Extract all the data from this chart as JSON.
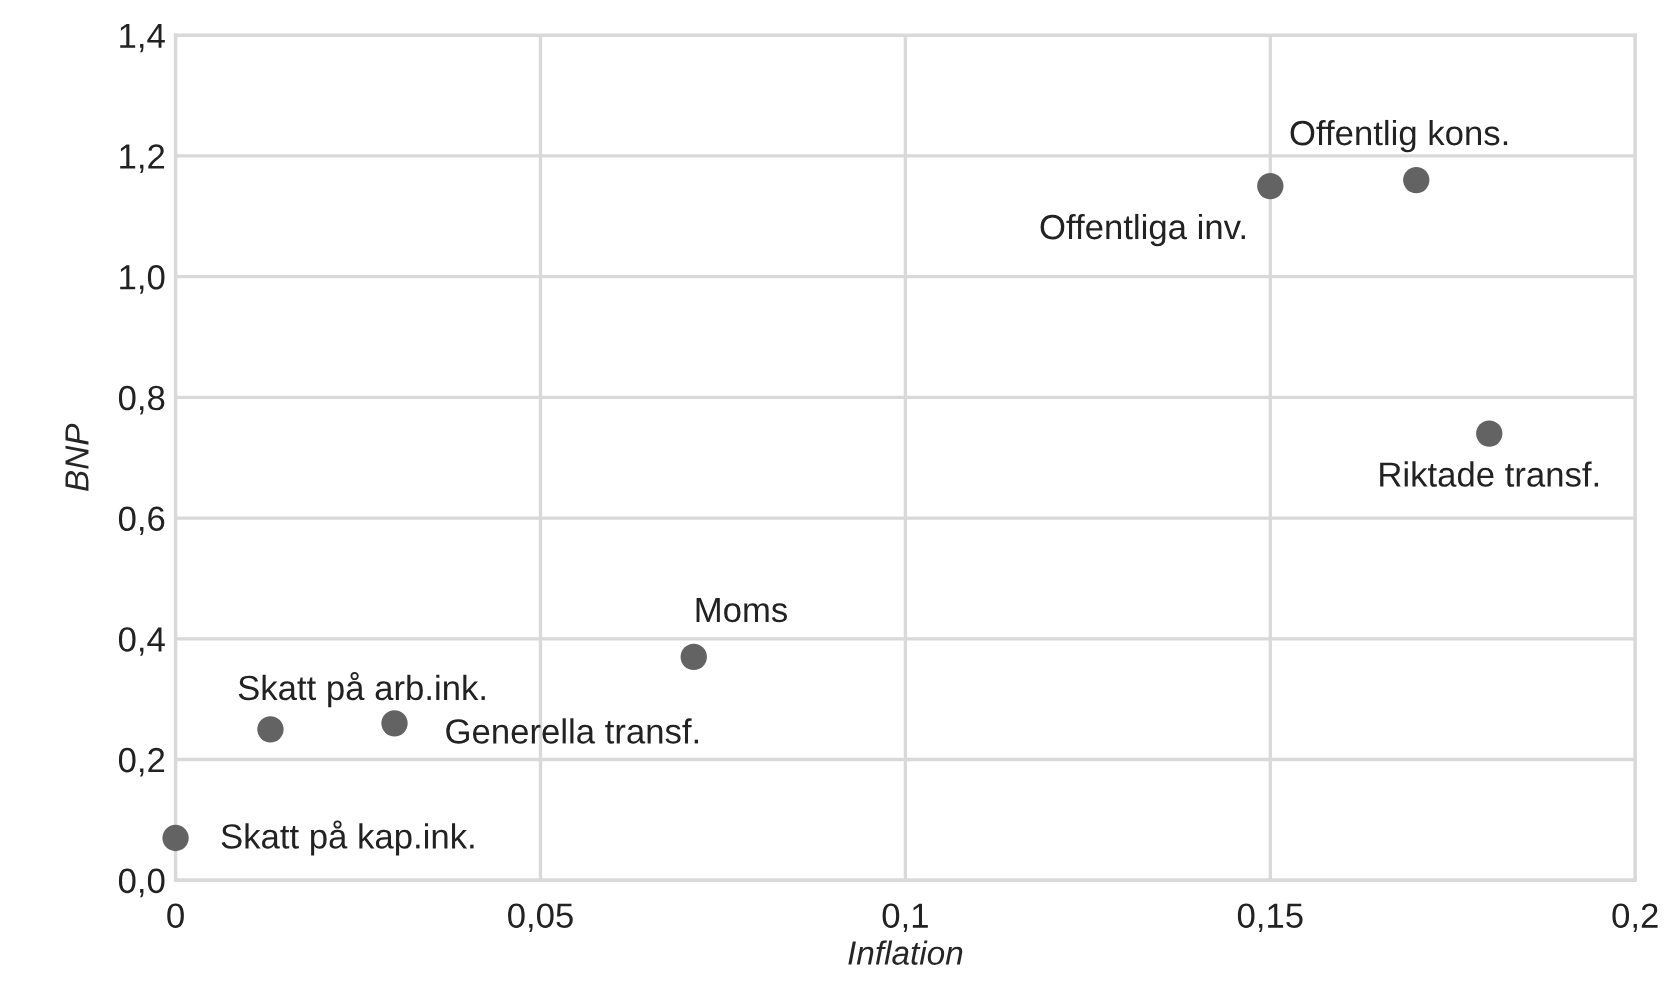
{
  "chart_data": {
    "type": "scatter",
    "xlabel": "Inflation",
    "ylabel": "BNP",
    "series": [
      {
        "color": "#636363",
        "x": [
          0,
          0.013,
          0.03,
          0.071,
          0.15,
          0.17,
          0.18
        ],
        "values": [
          0.07,
          0.25,
          0.26,
          0.37,
          1.15,
          1.16,
          0.74
        ]
      }
    ],
    "xlim": [
      0,
      0.2
    ],
    "xticks": [
      {
        "value": 0,
        "label": "0"
      },
      {
        "value": 0.05,
        "label": "0,05"
      },
      {
        "value": 0.1,
        "label": "0,1"
      },
      {
        "value": 0.15,
        "label": "0,15"
      },
      {
        "value": 0.2,
        "label": "0,2"
      }
    ],
    "ylim": [
      0,
      1.4
    ],
    "yticks": [
      {
        "value": 0,
        "label": "0,0"
      },
      {
        "value": 0.2,
        "label": "0,2"
      },
      {
        "value": 0.4,
        "label": "0,4"
      },
      {
        "value": 0.6,
        "label": "0,6"
      },
      {
        "value": 0.8,
        "label": "0,8"
      },
      {
        "value": 1.0,
        "label": "1,0"
      },
      {
        "value": 1.2,
        "label": "1,2"
      },
      {
        "value": 1.4,
        "label": "1,4"
      }
    ],
    "grid": true,
    "marker": "circle",
    "annotations": [
      {
        "text": "Skatt på kap.ink.",
        "x": 0,
        "y": 0.07
      },
      {
        "text": "Skatt på arb.ink.",
        "x": 0.013,
        "y": 0.25
      },
      {
        "text": "Generella transf.",
        "x": 0.03,
        "y": 0.26
      },
      {
        "text": "Moms",
        "x": 0.071,
        "y": 0.37
      },
      {
        "text": "Offentliga inv.",
        "x": 0.15,
        "y": 1.15
      },
      {
        "text": "Offentlig kons.",
        "x": 0.17,
        "y": 1.16
      },
      {
        "text": "Riktade transf.",
        "x": 0.18,
        "y": 0.74
      }
    ]
  }
}
